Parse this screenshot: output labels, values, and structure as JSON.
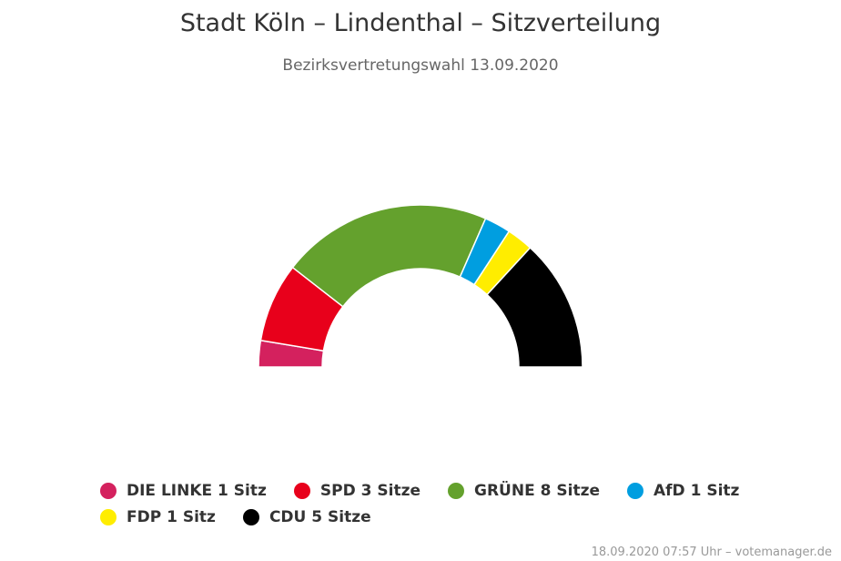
{
  "chart_data": {
    "type": "pie",
    "variant": "semicircle-parliament",
    "title": "Stadt Köln – Lindenthal – Sitzverteilung",
    "subtitle": "Bezirksvertretungswahl 13.09.2020",
    "series": [
      {
        "name": "DIE LINKE",
        "value": 1,
        "unit": "Sitz",
        "color": "#d4215e"
      },
      {
        "name": "SPD",
        "value": 3,
        "unit": "Sitze",
        "color": "#e8001b"
      },
      {
        "name": "GRÜNE",
        "value": 8,
        "unit": "Sitze",
        "color": "#64a12d"
      },
      {
        "name": "AfD",
        "value": 1,
        "unit": "Sitz",
        "color": "#009ee0"
      },
      {
        "name": "FDP",
        "value": 1,
        "unit": "Sitz",
        "color": "#ffed00"
      },
      {
        "name": "CDU",
        "value": 5,
        "unit": "Sitze",
        "color": "#000000"
      }
    ],
    "legend_position": "bottom"
  },
  "legend": {
    "row1": [
      {
        "label": "DIE LINKE 1 Sitz",
        "color": "#d4215e"
      },
      {
        "label": "SPD 3 Sitze",
        "color": "#e8001b"
      },
      {
        "label": "GRÜNE 8 Sitze",
        "color": "#64a12d"
      },
      {
        "label": "AfD 1 Sitz",
        "color": "#009ee0"
      }
    ],
    "row2": [
      {
        "label": "FDP 1 Sitz",
        "color": "#ffed00"
      },
      {
        "label": "CDU 5 Sitze",
        "color": "#000000"
      }
    ]
  },
  "credit": "18.09.2020 07:57 Uhr – votemanager.de"
}
